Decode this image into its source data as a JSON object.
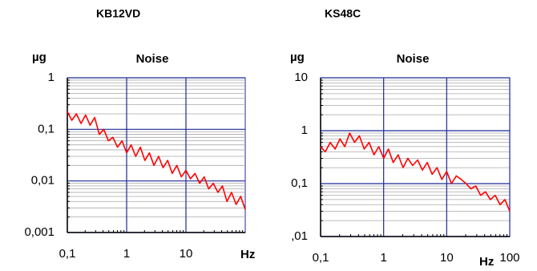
{
  "chart_data": [
    {
      "type": "line",
      "title": "KB12VD",
      "plot_title": "Noise",
      "ylabel": "µg",
      "xlabel": "Hz",
      "xscale": "log",
      "yscale": "log",
      "grid": true,
      "minor_grid": true,
      "xlim": [
        0.1,
        100
      ],
      "ylim": [
        0.001,
        1
      ],
      "xticks": [
        {
          "value": 0.1,
          "label": "0,1"
        },
        1,
        10
      ],
      "yticks": [
        {
          "value": 0.001,
          "label": "0,001"
        },
        {
          "value": 0.01,
          "label": "0,01"
        },
        {
          "value": 0.1,
          "label": "0,1"
        },
        1
      ],
      "x": [
        0.1,
        0.119,
        0.142,
        0.17,
        0.203,
        0.242,
        0.289,
        0.346,
        0.412,
        0.492,
        0.588,
        0.702,
        0.838,
        1,
        1.19,
        1.42,
        1.7,
        2.03,
        2.42,
        2.89,
        3.46,
        4.12,
        4.92,
        5.88,
        7.02,
        8.38,
        10,
        11.9,
        14.2,
        17,
        20.3,
        24.2,
        28.9,
        34.6,
        41.2,
        49.2,
        58.8,
        70.2,
        83.8,
        100
      ],
      "values": [
        0.22,
        0.15,
        0.2,
        0.13,
        0.19,
        0.12,
        0.17,
        0.08,
        0.1,
        0.06,
        0.07,
        0.045,
        0.06,
        0.035,
        0.05,
        0.03,
        0.045,
        0.025,
        0.035,
        0.02,
        0.03,
        0.018,
        0.025,
        0.014,
        0.02,
        0.012,
        0.016,
        0.011,
        0.014,
        0.009,
        0.012,
        0.007,
        0.009,
        0.006,
        0.008,
        0.004,
        0.006,
        0.0035,
        0.005,
        0.0028
      ],
      "color": "#ff0000"
    },
    {
      "type": "line",
      "title": "KS48C",
      "plot_title": "Noise",
      "ylabel": "µg",
      "xlabel": "Hz",
      "xscale": "log",
      "yscale": "log",
      "grid": true,
      "minor_grid": true,
      "xlim": [
        0.1,
        100
      ],
      "ylim": [
        0.01,
        10
      ],
      "xticks": [
        {
          "value": 0.1,
          "label": "0,1"
        },
        1,
        10,
        100
      ],
      "yticks": [
        {
          "value": 0.01,
          "label": ",01"
        },
        {
          "value": 0.1,
          "label": "0,1"
        },
        1,
        10
      ],
      "x": [
        0.1,
        0.119,
        0.142,
        0.17,
        0.203,
        0.242,
        0.289,
        0.346,
        0.412,
        0.492,
        0.588,
        0.702,
        0.838,
        1,
        1.19,
        1.42,
        1.7,
        2.03,
        2.42,
        2.89,
        3.46,
        4.12,
        4.92,
        5.88,
        7.02,
        8.38,
        10,
        11.9,
        14.2,
        17,
        20.3,
        24.2,
        28.9,
        34.6,
        41.2,
        49.2,
        58.8,
        70.2,
        83.8,
        100
      ],
      "values": [
        0.5,
        0.4,
        0.6,
        0.45,
        0.7,
        0.5,
        0.9,
        0.6,
        0.8,
        0.45,
        0.6,
        0.35,
        0.5,
        0.3,
        0.45,
        0.25,
        0.35,
        0.2,
        0.3,
        0.22,
        0.28,
        0.18,
        0.25,
        0.15,
        0.2,
        0.12,
        0.17,
        0.1,
        0.14,
        0.12,
        0.1,
        0.08,
        0.09,
        0.06,
        0.07,
        0.05,
        0.06,
        0.04,
        0.05,
        0.03
      ],
      "color": "#ff0000"
    }
  ]
}
